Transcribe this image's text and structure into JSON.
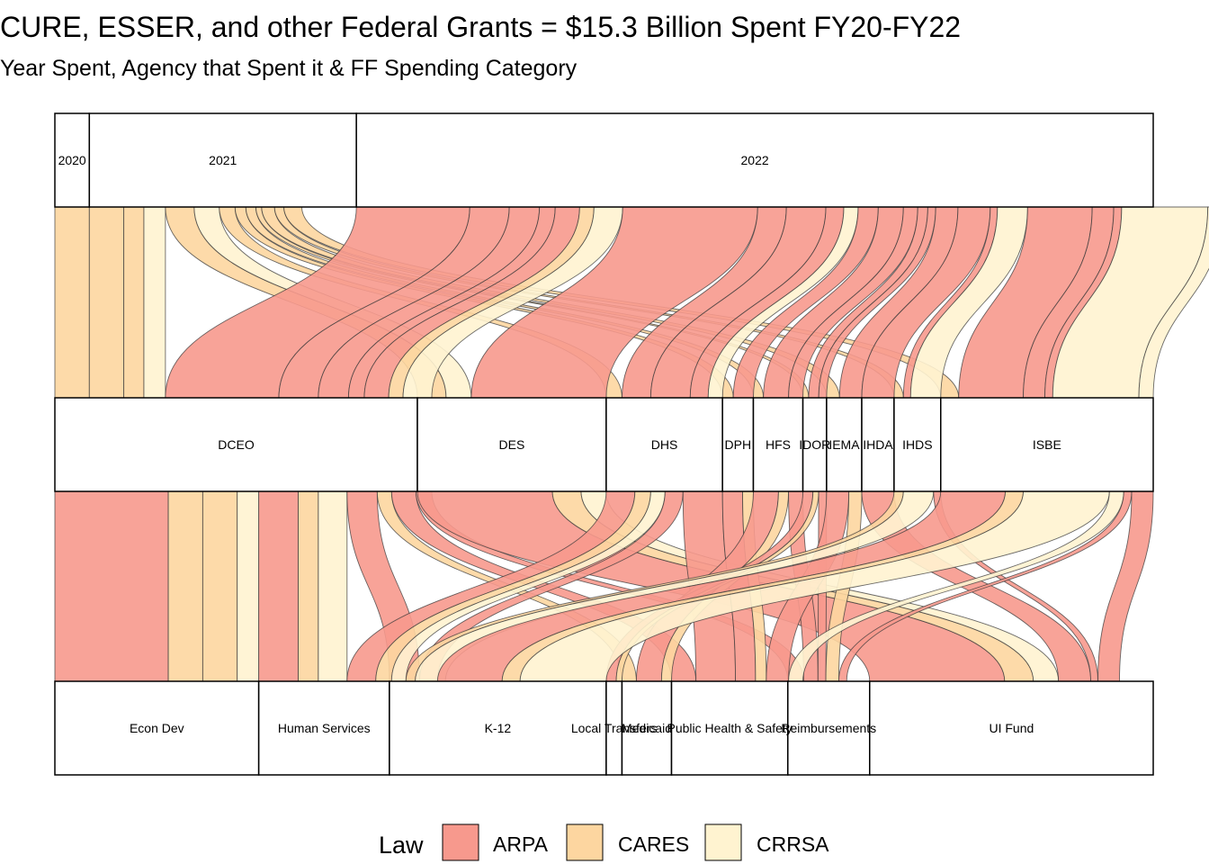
{
  "chart_data": {
    "type": "alluvial",
    "title": "CURE, ESSER, and other Federal Grants = $15.3 Billion Spent FY20-FY22",
    "subtitle": "Year Spent, Agency that Spent it & FF Spending Category",
    "units": "billions of dollars (estimated from stratum heights)",
    "axes": [
      {
        "name": "Year",
        "strata": [
          {
            "label": "2020",
            "value": 0.48
          },
          {
            "label": "2021",
            "value": 3.72
          },
          {
            "label": "2022",
            "value": 11.1
          }
        ]
      },
      {
        "name": "Agency",
        "strata": [
          {
            "label": "DCEO",
            "value": 5.05
          },
          {
            "label": "DES",
            "value": 2.63
          },
          {
            "label": "DHS",
            "value": 1.62
          },
          {
            "label": "DPH",
            "value": 0.43
          },
          {
            "label": "HFS",
            "value": 0.69
          },
          {
            "label": "IDOR",
            "value": 0.33
          },
          {
            "label": "IEMA",
            "value": 0.49
          },
          {
            "label": "IHDA",
            "value": 0.45
          },
          {
            "label": "IHDS",
            "value": 0.65
          },
          {
            "label": "ISBE",
            "value": 2.96
          }
        ]
      },
      {
        "name": "FF Spending Category",
        "strata": [
          {
            "label": "Econ Dev",
            "value": 2.84
          },
          {
            "label": "Human Services",
            "value": 1.82
          },
          {
            "label": "K-12",
            "value": 3.02
          },
          {
            "label": "Local Transfers",
            "value": 0.22
          },
          {
            "label": "Medicaid",
            "value": 0.69
          },
          {
            "label": "Public Health & Safety",
            "value": 1.62
          },
          {
            "label": "Reimbursements",
            "value": 1.14
          },
          {
            "label": "UI Fund",
            "value": 3.95
          }
        ]
      }
    ],
    "legend": {
      "title": "Law",
      "position": "bottom",
      "items": [
        {
          "label": "ARPA",
          "color": "#f7998d"
        },
        {
          "label": "CARES",
          "color": "#fdd6a0"
        },
        {
          "label": "CRRSA",
          "color": "#fff3d0"
        }
      ]
    },
    "flows": [
      {
        "year": "2020",
        "agency": "DCEO",
        "category": "Econ Dev",
        "law": "CARES",
        "value": 0.48
      },
      {
        "year": "2021",
        "agency": "DCEO",
        "category": "Econ Dev",
        "law": "CARES",
        "value": 0.48
      },
      {
        "year": "2021",
        "agency": "DCEO",
        "category": "Human Services",
        "law": "CARES",
        "value": 0.28
      },
      {
        "year": "2021",
        "agency": "DCEO",
        "category": "Econ Dev",
        "law": "CRRSA",
        "value": 0.3
      },
      {
        "year": "2021",
        "agency": "DES",
        "category": "UI Fund",
        "law": "CARES",
        "value": 0.4
      },
      {
        "year": "2021",
        "agency": "DES",
        "category": "UI Fund",
        "law": "CRRSA",
        "value": 0.35
      },
      {
        "year": "2021",
        "agency": "DHS",
        "category": "Human Services",
        "law": "CARES",
        "value": 0.22
      },
      {
        "year": "2021",
        "agency": "DPH",
        "category": "Public Health & Safety",
        "law": "CARES",
        "value": 0.15
      },
      {
        "year": "2021",
        "agency": "HFS",
        "category": "Medicaid",
        "law": "CARES",
        "value": 0.14
      },
      {
        "year": "2021",
        "agency": "IEMA",
        "category": "Reimbursements",
        "law": "CARES",
        "value": 0.18
      },
      {
        "year": "2021",
        "agency": "IHDS",
        "category": "Human Services",
        "law": "CARES",
        "value": 0.13
      },
      {
        "year": "2021",
        "agency": "ISBE",
        "category": "K-12",
        "law": "CARES",
        "value": 0.25
      },
      {
        "year": "2021",
        "agency": "IDOR",
        "category": "Local Transfers",
        "law": "CARES",
        "value": 0.08
      },
      {
        "year": "2022",
        "agency": "DCEO",
        "category": "Econ Dev",
        "law": "ARPA",
        "value": 1.58
      },
      {
        "year": "2022",
        "agency": "DCEO",
        "category": "Human Services",
        "law": "ARPA",
        "value": 0.55
      },
      {
        "year": "2022",
        "agency": "DCEO",
        "category": "K-12",
        "law": "ARPA",
        "value": 0.42
      },
      {
        "year": "2022",
        "agency": "DCEO",
        "category": "Reimbursements",
        "law": "ARPA",
        "value": 0.22
      },
      {
        "year": "2022",
        "agency": "DCEO",
        "category": "Public Health & Safety",
        "law": "ARPA",
        "value": 0.34
      },
      {
        "year": "2022",
        "agency": "DCEO",
        "category": "Human Services",
        "law": "CRRSA",
        "value": 0.4
      },
      {
        "year": "2022",
        "agency": "DES",
        "category": "UI Fund",
        "law": "ARPA",
        "value": 1.88
      },
      {
        "year": "2022",
        "agency": "DHS",
        "category": "Human Services",
        "law": "ARPA",
        "value": 0.4
      },
      {
        "year": "2022",
        "agency": "DHS",
        "category": "Public Health & Safety",
        "law": "ARPA",
        "value": 0.55
      },
      {
        "year": "2022",
        "agency": "DHS",
        "category": "K-12",
        "law": "ARPA",
        "value": 0.25
      },
      {
        "year": "2022",
        "agency": "DHS",
        "category": "Human Services",
        "law": "CRRSA",
        "value": 0.2
      },
      {
        "year": "2022",
        "agency": "DPH",
        "category": "Public Health & Safety",
        "law": "ARPA",
        "value": 0.28
      },
      {
        "year": "2022",
        "agency": "HFS",
        "category": "Medicaid",
        "law": "ARPA",
        "value": 0.35
      },
      {
        "year": "2022",
        "agency": "HFS",
        "category": "Reimbursements",
        "law": "ARPA",
        "value": 0.2
      },
      {
        "year": "2022",
        "agency": "IDOR",
        "category": "Local Transfers",
        "law": "ARPA",
        "value": 0.14
      },
      {
        "year": "2022",
        "agency": "IDOR",
        "category": "Reimbursements",
        "law": "ARPA",
        "value": 0.11
      },
      {
        "year": "2022",
        "agency": "IEMA",
        "category": "Public Health & Safety",
        "law": "ARPA",
        "value": 0.31
      },
      {
        "year": "2022",
        "agency": "IHDA",
        "category": "UI Fund",
        "law": "ARPA",
        "value": 0.45
      },
      {
        "year": "2022",
        "agency": "IHDS",
        "category": "Human Services",
        "law": "CRRSA",
        "value": 0.42
      },
      {
        "year": "2022",
        "agency": "IHDS",
        "category": "UI Fund",
        "law": "ARPA",
        "value": 0.1
      },
      {
        "year": "2022",
        "agency": "ISBE",
        "category": "K-12",
        "law": "ARPA",
        "value": 0.9
      },
      {
        "year": "2022",
        "agency": "ISBE",
        "category": "K-12",
        "law": "CRRSA",
        "value": 1.2
      },
      {
        "year": "2022",
        "agency": "ISBE",
        "category": "UI Fund",
        "law": "ARPA",
        "value": 0.3
      },
      {
        "year": "2022",
        "agency": "ISBE",
        "category": "Reimbursements",
        "law": "ARPA",
        "value": 0.11
      },
      {
        "year": "2022",
        "agency": "ISBE",
        "category": "Public Health & Safety",
        "law": "CRRSA",
        "value": 0.2
      },
      {
        "year": "2022",
        "agency": "DCEO",
        "category": "Medicaid",
        "law": "CARES",
        "value": 0.2
      },
      {
        "year": "2022",
        "agency": "DPH",
        "category": "Public Health & Safety",
        "law": "CRRSA",
        "value": 0.0
      },
      {
        "year": "2022",
        "agency": "DES",
        "category": "UI Fund",
        "law": "CRRSA",
        "value": 0.0
      },
      {
        "year": "2022",
        "agency": "IEMA",
        "category": "Public Health & Safety",
        "law": "CRRSA",
        "value": 0.0
      },
      {
        "year": "2022",
        "agency": "DHS",
        "category": "Public Health & Safety",
        "law": "CRRSA",
        "value": 0.0
      }
    ]
  }
}
